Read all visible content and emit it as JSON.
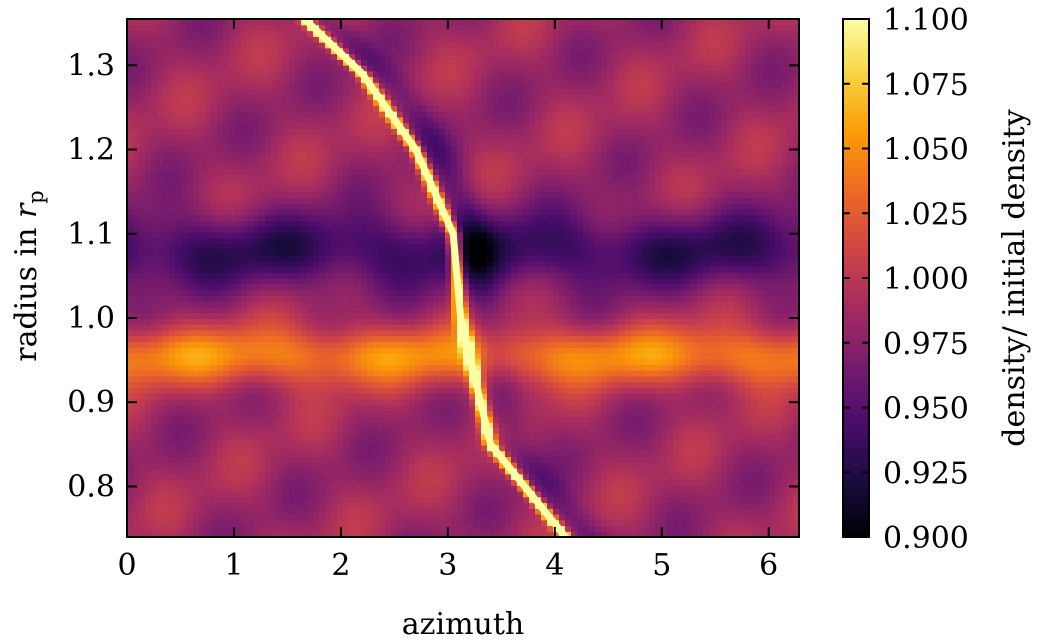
{
  "chart_data": {
    "type": "heatmap",
    "title": "",
    "xlabel": "azimuth",
    "ylabel_text": "radius in ",
    "ylabel_symbol": "r",
    "ylabel_subscript": "p",
    "xlim": [
      0,
      6.2832
    ],
    "ylim": [
      0.74,
      1.355
    ],
    "xticks": [
      0,
      1,
      2,
      3,
      4,
      5,
      6
    ],
    "yticks": [
      0.8,
      0.9,
      1.0,
      1.1,
      1.2,
      1.3
    ],
    "ytick_labels": [
      "0.8",
      "0.9",
      "1.0",
      "1.1",
      "1.2",
      "1.3"
    ],
    "colorbar": {
      "label": "density/ initial density",
      "min": 0.9,
      "max": 1.1,
      "ticks": [
        "0.900",
        "0.925",
        "0.950",
        "0.975",
        "1.000",
        "1.025",
        "1.050",
        "1.075",
        "1.100"
      ],
      "colormap": "inferno",
      "colormap_stops": [
        "#000004",
        "#1b0c41",
        "#4a0c6b",
        "#781c6d",
        "#a52c60",
        "#cf4446",
        "#ed6925",
        "#fb9b06",
        "#f7d13d",
        "#fcffa4"
      ]
    },
    "features": {
      "background_density": 0.985,
      "gap_band": {
        "r_center": 1.08,
        "r_halfwidth": 0.045,
        "density": 0.935
      },
      "enhanced_band": {
        "r_center": 0.955,
        "r_halfwidth": 0.035,
        "density": 1.045
      },
      "spiral_wake": {
        "density": 1.1,
        "points": [
          [
            1.66,
            1.355
          ],
          [
            2.2,
            1.29
          ],
          [
            2.7,
            1.2
          ],
          [
            3.05,
            1.1
          ],
          [
            3.12,
            1.0
          ],
          [
            3.4,
            0.85
          ],
          [
            4.1,
            0.74
          ]
        ]
      }
    }
  }
}
